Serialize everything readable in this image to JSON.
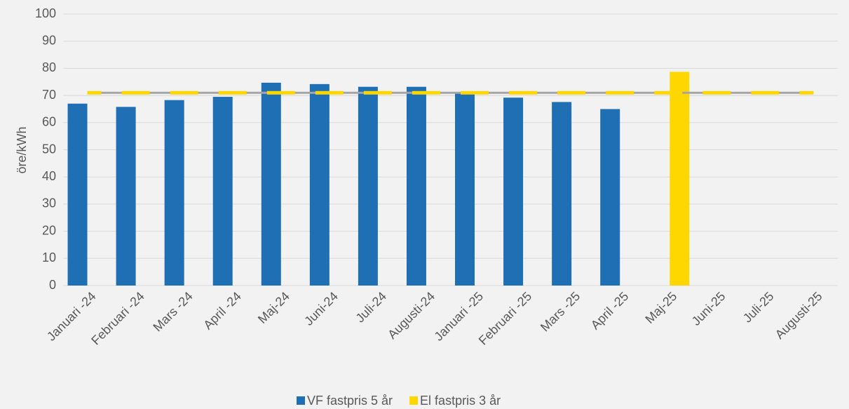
{
  "chart_data": {
    "type": "bar",
    "categories": [
      "Januari -24",
      "Februari -24",
      "Mars -24",
      "April -24",
      "Maj-24",
      "Juni-24",
      "Juli-24",
      "Augusti-24",
      "Januari -25",
      "Februari -25",
      "Mars -25",
      "April -25",
      "Maj-25",
      "Juni-25",
      "Juli-25",
      "Augusti-25"
    ],
    "y_label": "öre/kWh",
    "series": [
      {
        "name": "VF fastpris 5 år",
        "color": "#1f6fb4",
        "values": [
          67,
          65.8,
          68.3,
          69.5,
          74.7,
          74.2,
          73.2,
          73.2,
          71.2,
          69.2,
          67.6,
          65,
          null,
          null,
          null,
          null
        ]
      },
      {
        "name": "El fastpris 3 år",
        "color": "#ffd700",
        "values": [
          null,
          null,
          null,
          null,
          null,
          null,
          null,
          null,
          null,
          null,
          null,
          null,
          78.7,
          null,
          null,
          null
        ]
      },
      {
        "type": "line",
        "dashed": true,
        "color": "#ffd700",
        "values": [
          71,
          71,
          71,
          71,
          71,
          71,
          71,
          71,
          71,
          71,
          71,
          71,
          71,
          71,
          71,
          71
        ]
      }
    ],
    "ylim": [
      0,
      100
    ],
    "yticks": [
      0,
      10,
      20,
      30,
      40,
      50,
      60,
      70,
      80,
      90,
      100
    ],
    "grid": true,
    "legend": "bottom"
  }
}
